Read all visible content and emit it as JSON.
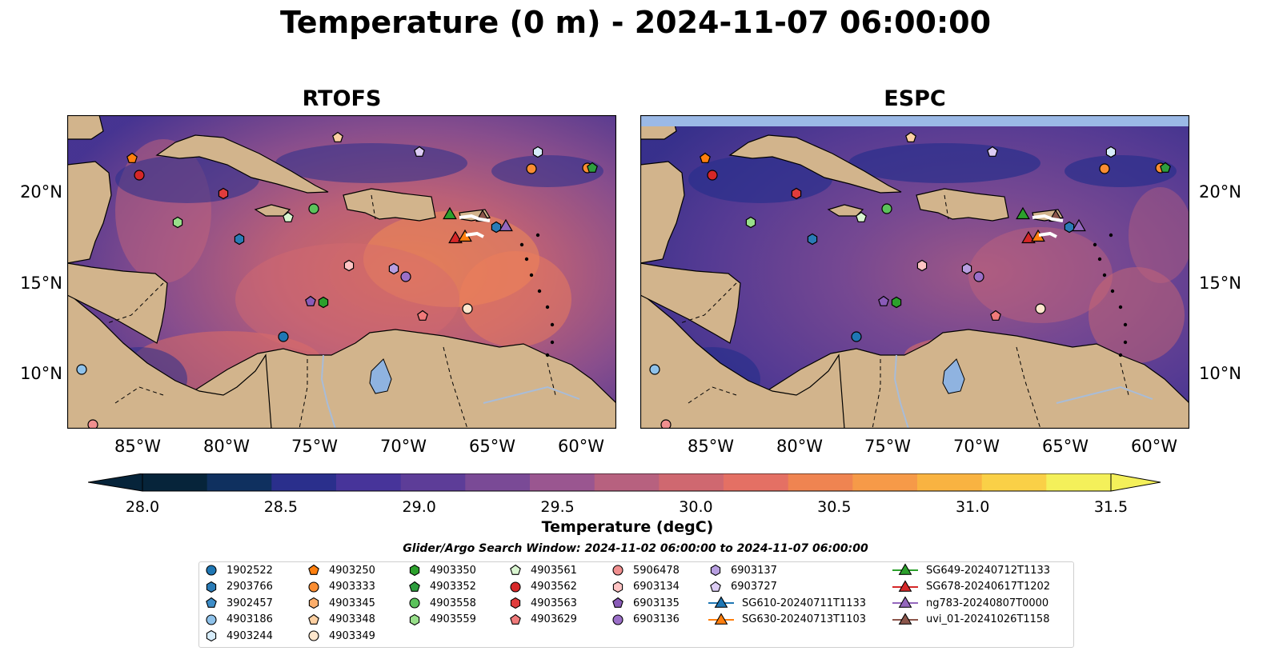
{
  "title": "Temperature (0 m) - 2024-11-07 06:00:00",
  "panels": [
    {
      "id": "rtofs",
      "title": "RTOFS"
    },
    {
      "id": "espc",
      "title": "ESPC"
    }
  ],
  "x_ticks": [
    "85°W",
    "80°W",
    "75°W",
    "70°W",
    "65°W",
    "60°W"
  ],
  "y_ticks": [
    "20°N",
    "15°N",
    "10°N"
  ],
  "colorbar": {
    "label": "Temperature (degC)",
    "ticks": [
      "28.0",
      "28.5",
      "29.0",
      "29.5",
      "30.0",
      "30.5",
      "31.0",
      "31.5"
    ],
    "range": [
      28.0,
      31.5
    ],
    "colors": [
      "#06243a",
      "#0f305f",
      "#2a2f8c",
      "#47349a",
      "#5d3d98",
      "#7a4a96",
      "#9a5690",
      "#b7617f",
      "#cf6870",
      "#e47064",
      "#ef8451",
      "#f69a48",
      "#f9b341",
      "#fad047",
      "#f4f05a"
    ]
  },
  "legend": {
    "title": "Glider/Argo Search Window: 2024-11-02 06:00:00 to 2024-11-07 06:00:00",
    "columns": [
      [
        {
          "label": "1902522",
          "marker": "circle",
          "color": "#1f77b4"
        },
        {
          "label": "2903766",
          "marker": "hexagon",
          "color": "#2a7bb6"
        },
        {
          "label": "3902457",
          "marker": "pentagon",
          "color": "#3d8dc8"
        },
        {
          "label": "4903186",
          "marker": "circle",
          "color": "#8fc2ea"
        },
        {
          "label": "4903244",
          "marker": "hexagon",
          "color": "#d6ecfa"
        }
      ],
      [
        {
          "label": "4903250",
          "marker": "pentagon",
          "color": "#ff7f0e"
        },
        {
          "label": "4903333",
          "marker": "circle",
          "color": "#fa8d32"
        },
        {
          "label": "4903345",
          "marker": "hexagon",
          "color": "#fdae6b"
        },
        {
          "label": "4903348",
          "marker": "pentagon",
          "color": "#fdd0a2"
        },
        {
          "label": "4903349",
          "marker": "circle",
          "color": "#fee6cc"
        }
      ],
      [
        {
          "label": "4903350",
          "marker": "hexagon",
          "color": "#2ca02c"
        },
        {
          "label": "4903352",
          "marker": "pentagon",
          "color": "#2e9e3e"
        },
        {
          "label": "4903558",
          "marker": "circle",
          "color": "#5bc25b"
        },
        {
          "label": "4903559",
          "marker": "hexagon",
          "color": "#98df8a"
        }
      ],
      [
        {
          "label": "4903561",
          "marker": "pentagon",
          "color": "#d9f5d0"
        },
        {
          "label": "4903562",
          "marker": "circle",
          "color": "#d62728"
        },
        {
          "label": "4903563",
          "marker": "hexagon",
          "color": "#e03c3c"
        },
        {
          "label": "4903629",
          "marker": "pentagon",
          "color": "#f07a7a"
        }
      ],
      [
        {
          "label": "5906478",
          "marker": "circle",
          "color": "#f08f8f"
        },
        {
          "label": "6903134",
          "marker": "hexagon",
          "color": "#ffc4c4"
        },
        {
          "label": "6903135",
          "marker": "pentagon",
          "color": "#8a5bb8"
        },
        {
          "label": "6903136",
          "marker": "circle",
          "color": "#9b6fc8"
        }
      ],
      [
        {
          "label": "6903137",
          "marker": "hexagon",
          "color": "#b79ee0"
        },
        {
          "label": "6903727",
          "marker": "pentagon",
          "color": "#dcccf4"
        },
        {
          "label": "SG610-20240711T1133",
          "marker": "triangle-line",
          "color": "#1f77b4"
        },
        {
          "label": "SG630-20240713T1103",
          "marker": "triangle-line",
          "color": "#ff7f0e"
        }
      ],
      [
        {
          "label": "SG649-20240712T1133",
          "marker": "triangle-line",
          "color": "#2ca02c"
        },
        {
          "label": "SG678-20240617T1202",
          "marker": "triangle-line",
          "color": "#d62728"
        },
        {
          "label": "ng783-20240807T0000",
          "marker": "triangle-line",
          "color": "#9467bd"
        },
        {
          "label": "uvi_01-20241026T1158",
          "marker": "triangle-line",
          "color": "#8c564b"
        }
      ]
    ]
  }
}
